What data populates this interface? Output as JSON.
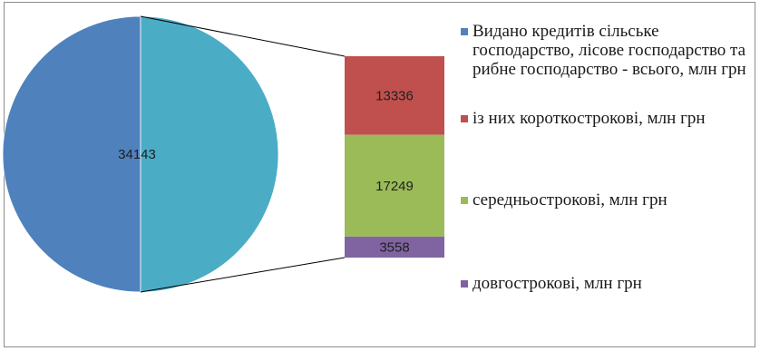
{
  "chart_data": {
    "type": "pie",
    "subtype": "bar-of-pie",
    "pie": {
      "values": [
        34143
      ],
      "labels": [
        "34143"
      ]
    },
    "bar": {
      "segments": [
        {
          "name": "із них короткострокові, млн грн",
          "value": 13336,
          "label": "13336",
          "color": "#c0504d"
        },
        {
          "name": "середньострокові, млн грн",
          "value": 17249,
          "label": "17249",
          "color": "#9bbb59"
        },
        {
          "name": "довгострокові, млн грн",
          "value": 3558,
          "label": "3558",
          "color": "#8064a2"
        }
      ]
    },
    "legend": {
      "position": "right",
      "items": [
        {
          "label": "Видано кредитів сільське господарство, лісове господарство та рибне господарство - всього, млн грн",
          "color": "#4f81bd"
        },
        {
          "label": "із них короткострокові, млн грн",
          "color": "#c0504d"
        },
        {
          "label": "середньострокові, млн грн",
          "color": "#9bbb59"
        },
        {
          "label": "довгострокові, млн грн",
          "color": "#8064a2"
        }
      ]
    },
    "colors": {
      "pie_main": "#4f81bd",
      "pie_split": "#4bacc6",
      "connector": "#000000"
    }
  }
}
